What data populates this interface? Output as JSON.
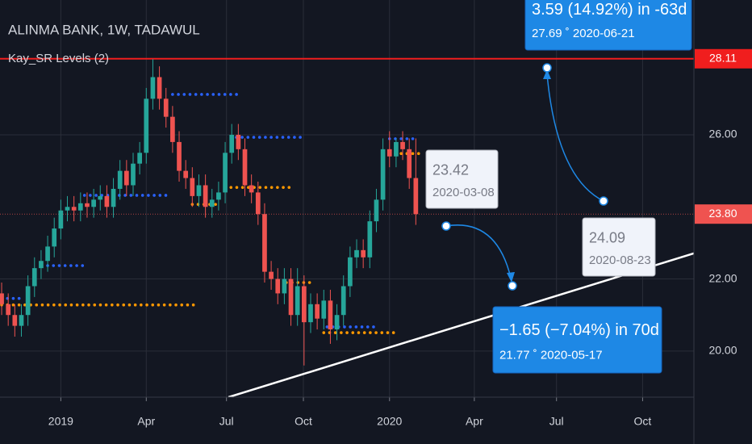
{
  "chart_data": {
    "type": "candlestick",
    "title": "ALINMA BANK, 1W, TADAWUL",
    "indicator": "Kay_SR Levels (2)",
    "up_color": "#26a69a",
    "down_color": "#ef5350",
    "open": [
      21.6,
      21.3,
      21.0,
      20.7,
      21.0,
      21.8,
      22.3,
      22.5,
      22.9,
      23.4,
      23.9,
      24.0,
      23.9,
      24.1,
      24.0,
      24.2,
      24.3,
      24.0,
      24.5,
      25.0,
      24.6,
      25.2,
      25.5,
      27.0,
      27.6,
      27.0,
      26.5,
      25.8,
      25.0,
      24.8,
      24.3,
      24.6,
      24.0,
      24.2,
      24.4,
      25.5,
      26.0,
      25.6,
      24.6,
      24.4,
      23.8,
      22.2,
      22.0,
      21.6,
      22.0,
      21.0,
      21.8,
      20.8,
      21.3,
      20.9,
      21.4,
      20.6,
      21.0,
      21.8,
      22.6,
      22.8,
      22.6,
      23.6,
      24.2,
      25.6,
      25.4,
      25.8,
      25.6,
      24.8
    ],
    "high": [
      21.9,
      21.6,
      21.3,
      21.3,
      22.1,
      22.6,
      22.8,
      23.2,
      23.7,
      24.2,
      24.3,
      24.3,
      24.4,
      24.4,
      24.5,
      24.6,
      24.6,
      24.8,
      25.3,
      25.3,
      25.5,
      25.8,
      27.3,
      28.1,
      27.9,
      27.3,
      26.8,
      26.1,
      25.3,
      25.1,
      24.9,
      24.9,
      24.5,
      24.7,
      25.8,
      26.3,
      26.3,
      25.9,
      24.9,
      24.7,
      24.1,
      22.5,
      22.3,
      22.3,
      22.3,
      22.3,
      22.1,
      21.6,
      21.6,
      21.7,
      21.7,
      21.3,
      22.1,
      22.9,
      23.1,
      23.1,
      23.9,
      24.5,
      25.9,
      26.1,
      25.9,
      26.1,
      25.9,
      25.9
    ],
    "low": [
      21.0,
      20.7,
      20.4,
      20.4,
      20.7,
      21.5,
      22.0,
      22.2,
      22.6,
      23.1,
      23.6,
      23.6,
      23.6,
      23.7,
      23.7,
      23.9,
      23.7,
      23.7,
      24.2,
      24.3,
      24.3,
      24.9,
      25.2,
      26.7,
      26.7,
      26.2,
      25.5,
      24.7,
      24.5,
      24.0,
      24.0,
      23.7,
      23.7,
      23.9,
      24.1,
      25.2,
      25.3,
      24.3,
      24.1,
      23.5,
      21.9,
      21.7,
      21.3,
      21.3,
      20.7,
      20.7,
      19.6,
      20.5,
      20.6,
      20.6,
      20.2,
      20.3,
      20.7,
      21.5,
      22.3,
      22.3,
      22.3,
      23.3,
      23.9,
      25.1,
      25.1,
      25.3,
      24.5,
      23.5
    ],
    "close": [
      21.3,
      21.0,
      20.7,
      21.0,
      21.8,
      22.3,
      22.5,
      22.9,
      23.4,
      23.9,
      24.0,
      23.9,
      24.1,
      24.0,
      24.2,
      24.3,
      24.0,
      24.5,
      25.0,
      24.6,
      25.2,
      25.5,
      27.0,
      27.6,
      27.0,
      26.5,
      25.8,
      25.0,
      24.8,
      24.3,
      24.6,
      24.0,
      24.2,
      24.4,
      25.5,
      26.0,
      25.6,
      24.6,
      24.4,
      23.8,
      22.2,
      22.0,
      21.6,
      22.0,
      21.0,
      21.8,
      20.8,
      21.3,
      20.9,
      21.4,
      20.6,
      21.0,
      21.8,
      22.6,
      22.8,
      22.6,
      23.6,
      24.2,
      25.6,
      25.4,
      25.8,
      25.6,
      24.8,
      23.8
    ],
    "xlim": [
      -0.25,
      105.3
    ],
    "ylim": [
      18.72,
      29.74
    ],
    "xticks": [
      {
        "value": 9,
        "label": "2019"
      },
      {
        "value": 22,
        "label": "Apr"
      },
      {
        "value": 34.2,
        "label": "Jul"
      },
      {
        "value": 45.9,
        "label": "Oct"
      },
      {
        "value": 59,
        "label": "2020"
      },
      {
        "value": 71.9,
        "label": "Apr"
      },
      {
        "value": 84.4,
        "label": "Jul"
      },
      {
        "value": 97.5,
        "label": "Oct"
      }
    ],
    "yticks": [
      {
        "value": 20,
        "label": "20.00"
      },
      {
        "value": 22,
        "label": "22.00"
      },
      {
        "value": 26,
        "label": "26.00"
      }
    ],
    "grid": true,
    "levels": [
      {
        "color": "#2962ff",
        "value": 27.12,
        "from": 26,
        "to": 36
      },
      {
        "color": "#2962ff",
        "value": 25.93,
        "from": 35.7,
        "to": 46
      },
      {
        "color": "#2962ff",
        "value": 24.32,
        "from": 12.6,
        "to": 25
      },
      {
        "color": "#2962ff",
        "value": 22.37,
        "from": 7,
        "to": 13
      },
      {
        "color": "#2962ff",
        "value": 21.46,
        "from": 0,
        "to": 3.5
      },
      {
        "color": "#2962ff",
        "value": 20.67,
        "from": 49.5,
        "to": 57
      },
      {
        "color": "#2962ff",
        "value": 25.89,
        "from": 59,
        "to": 63
      },
      {
        "color": "#ff9800",
        "value": 21.28,
        "from": 0,
        "to": 30
      },
      {
        "color": "#ff9800",
        "value": 24.54,
        "from": 34,
        "to": 44
      },
      {
        "color": "#ff9800",
        "value": 24.07,
        "from": 29,
        "to": 33
      },
      {
        "color": "#ff9800",
        "value": 21.9,
        "from": 43.3,
        "to": 47.6
      },
      {
        "color": "#ff9800",
        "value": 20.51,
        "from": 49,
        "to": 60
      },
      {
        "color": "#ff9800",
        "value": 25.48,
        "from": 59,
        "to": 64
      }
    ],
    "trend_line": {
      "color": "#ffffff",
      "x": [
        34.5,
        106
      ],
      "y": [
        18.72,
        22.75
      ]
    },
    "price_lines": [
      {
        "value": 28.11,
        "label": "28.11",
        "color": "#f01e1e"
      },
      {
        "value": 23.8,
        "label": "23.80",
        "color": "#ef5350"
      }
    ],
    "callouts": [
      {
        "color": "#f0f3fa",
        "lines": [
          "23.42",
          "2020-03-08"
        ]
      },
      {
        "color": "#1e88e5",
        "lines": [
          "−1.65 (−7.04%)  in 70d",
          "21.77 ˚  2020-05-17"
        ]
      },
      {
        "color": "#f0f3fa",
        "lines": [
          "24.09",
          "2020-08-23"
        ]
      },
      {
        "color": "#1e88e5",
        "lines": [
          "3.59 (14.92%)  in -63d",
          "27.69 ˚  2020-06-21"
        ]
      }
    ]
  }
}
